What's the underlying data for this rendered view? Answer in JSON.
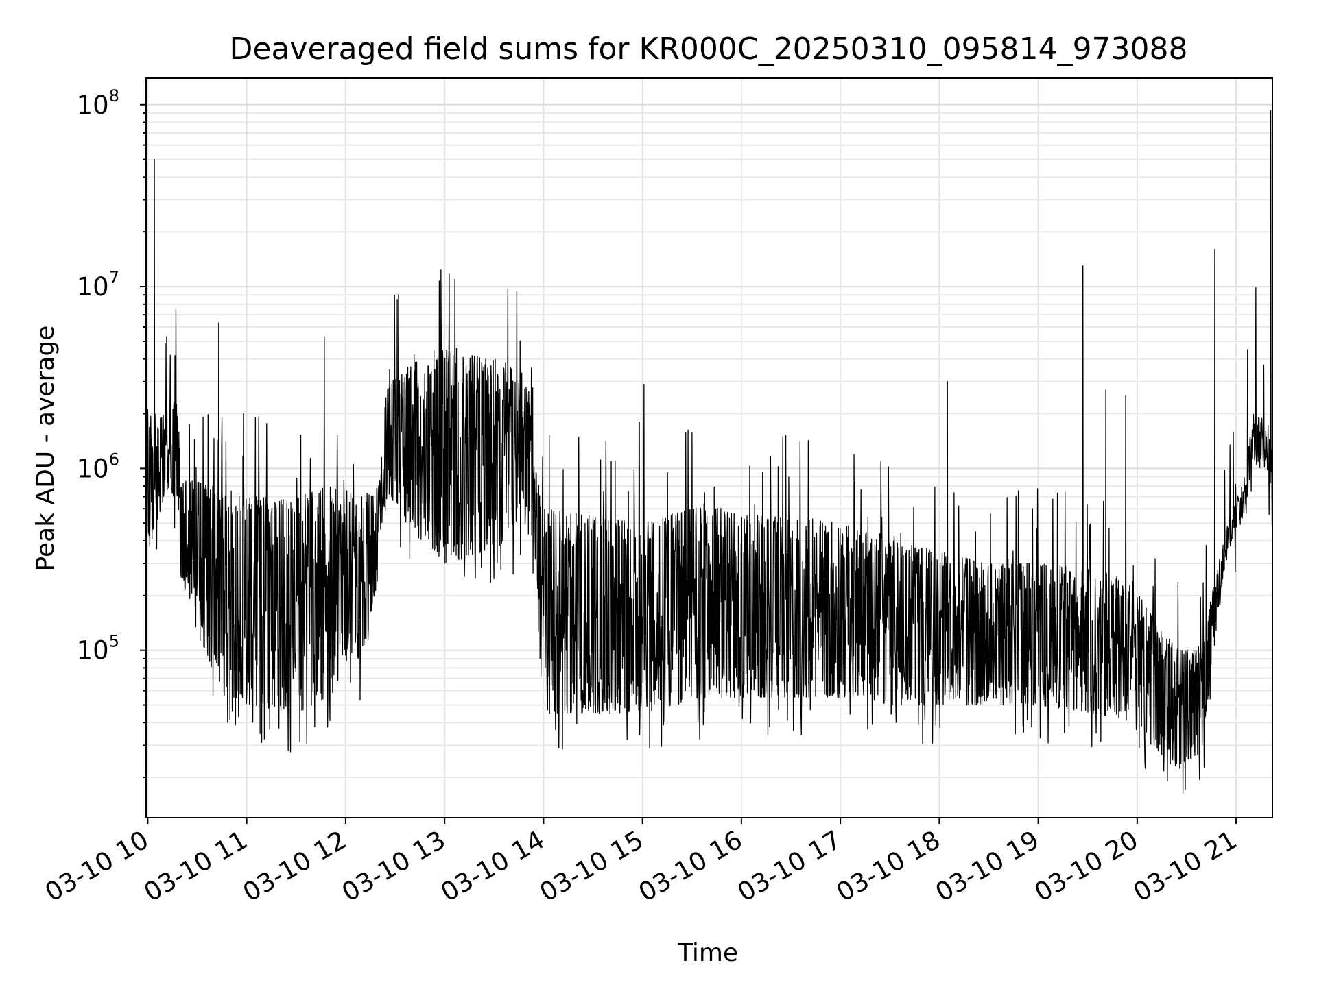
{
  "chart_data": {
    "type": "line",
    "title": "Deaveraged field sums for KR000C_20250310_095814_973088",
    "xlabel": "Time",
    "ylabel": "Peak ADU - average",
    "y_scale": "log",
    "ylim": [
      12000,
      140000000
    ],
    "xlim": [
      "2025-03-10 09:59",
      "2025-03-10 21:22"
    ],
    "grid": true,
    "line_color": "#000000",
    "x_ticks": [
      {
        "x": "2025-03-10 10:00",
        "label": "03-10 10"
      },
      {
        "x": "2025-03-10 11:00",
        "label": "03-10 11"
      },
      {
        "x": "2025-03-10 12:00",
        "label": "03-10 12"
      },
      {
        "x": "2025-03-10 13:00",
        "label": "03-10 13"
      },
      {
        "x": "2025-03-10 14:00",
        "label": "03-10 14"
      },
      {
        "x": "2025-03-10 15:00",
        "label": "03-10 15"
      },
      {
        "x": "2025-03-10 16:00",
        "label": "03-10 16"
      },
      {
        "x": "2025-03-10 17:00",
        "label": "03-10 17"
      },
      {
        "x": "2025-03-10 18:00",
        "label": "03-10 18"
      },
      {
        "x": "2025-03-10 19:00",
        "label": "03-10 19"
      },
      {
        "x": "2025-03-10 20:00",
        "label": "03-10 20"
      },
      {
        "x": "2025-03-10 21:00",
        "label": "03-10 21"
      }
    ],
    "y_ticks": [
      {
        "value": 100000,
        "base": "10",
        "exp": "5"
      },
      {
        "value": 1000000,
        "base": "10",
        "exp": "6"
      },
      {
        "value": 10000000,
        "base": "10",
        "exp": "7"
      },
      {
        "value": 100000000,
        "base": "10",
        "exp": "8"
      }
    ],
    "series": [
      {
        "envelope": [
          {
            "x": "2025-03-10 09:59",
            "low": 330000,
            "high": 1200000
          },
          {
            "x": "2025-03-10 10:02",
            "low": 380000,
            "high": 2000000
          },
          {
            "x": "2025-03-10 10:10",
            "low": 700000,
            "high": 2000000
          },
          {
            "x": "2025-03-10 10:18",
            "low": 700000,
            "high": 2500000
          },
          {
            "x": "2025-03-10 10:20",
            "low": 250000,
            "high": 900000
          },
          {
            "x": "2025-03-10 10:30",
            "low": 120000,
            "high": 850000
          },
          {
            "x": "2025-03-10 10:45",
            "low": 55000,
            "high": 800000
          },
          {
            "x": "2025-03-10 11:00",
            "low": 50000,
            "high": 700000
          },
          {
            "x": "2025-03-10 11:30",
            "low": 45000,
            "high": 700000
          },
          {
            "x": "2025-03-10 11:50",
            "low": 55000,
            "high": 800000
          },
          {
            "x": "2025-03-10 12:10",
            "low": 90000,
            "high": 700000
          },
          {
            "x": "2025-03-10 12:20",
            "low": 250000,
            "high": 800000
          },
          {
            "x": "2025-03-10 12:25",
            "low": 700000,
            "high": 3000000
          },
          {
            "x": "2025-03-10 12:45",
            "low": 400000,
            "high": 4000000
          },
          {
            "x": "2025-03-10 13:00",
            "low": 300000,
            "high": 4500000
          },
          {
            "x": "2025-03-10 13:30",
            "low": 350000,
            "high": 4000000
          },
          {
            "x": "2025-03-10 13:50",
            "low": 500000,
            "high": 3500000
          },
          {
            "x": "2025-03-10 13:55",
            "low": 200000,
            "high": 1000000
          },
          {
            "x": "2025-03-10 14:00",
            "low": 45000,
            "high": 600000
          },
          {
            "x": "2025-03-10 14:30",
            "low": 45000,
            "high": 550000
          },
          {
            "x": "2025-03-10 15:00",
            "low": 45000,
            "high": 500000
          },
          {
            "x": "2025-03-10 15:40",
            "low": 55000,
            "high": 650000
          },
          {
            "x": "2025-03-10 16:00",
            "low": 55000,
            "high": 550000
          },
          {
            "x": "2025-03-10 16:30",
            "low": 55000,
            "high": 550000
          },
          {
            "x": "2025-03-10 17:00",
            "low": 55000,
            "high": 500000
          },
          {
            "x": "2025-03-10 17:30",
            "low": 50000,
            "high": 400000
          },
          {
            "x": "2025-03-10 18:00",
            "low": 50000,
            "high": 350000
          },
          {
            "x": "2025-03-10 18:30",
            "low": 50000,
            "high": 300000
          },
          {
            "x": "2025-03-10 19:00",
            "low": 50000,
            "high": 300000
          },
          {
            "x": "2025-03-10 19:30",
            "low": 45000,
            "high": 280000
          },
          {
            "x": "2025-03-10 19:55",
            "low": 40000,
            "high": 250000
          },
          {
            "x": "2025-03-10 20:10",
            "low": 28000,
            "high": 150000
          },
          {
            "x": "2025-03-10 20:25",
            "low": 22000,
            "high": 100000
          },
          {
            "x": "2025-03-10 20:40",
            "low": 28000,
            "high": 110000
          },
          {
            "x": "2025-03-10 20:45",
            "low": 80000,
            "high": 200000
          },
          {
            "x": "2025-03-10 20:55",
            "low": 350000,
            "high": 500000
          },
          {
            "x": "2025-03-10 21:05",
            "low": 550000,
            "high": 900000
          },
          {
            "x": "2025-03-10 21:10",
            "low": 1100000,
            "high": 2000000
          },
          {
            "x": "2025-03-10 21:20",
            "low": 900000,
            "high": 1800000
          },
          {
            "x": "2025-03-10 21:22",
            "low": 450000,
            "high": 1200000
          }
        ],
        "spikes": [
          {
            "x": "2025-03-10 10:04",
            "y": 50000000
          },
          {
            "x": "2025-03-10 10:17",
            "y": 7500000
          },
          {
            "x": "2025-03-10 10:43",
            "y": 6300000
          },
          {
            "x": "2025-03-10 11:47",
            "y": 5300000
          },
          {
            "x": "2025-03-10 10:58",
            "y": 2000000
          },
          {
            "x": "2025-03-10 14:58",
            "y": 1800000
          },
          {
            "x": "2025-03-10 15:01",
            "y": 2900000
          },
          {
            "x": "2025-03-10 18:05",
            "y": 3000000
          },
          {
            "x": "2025-03-10 19:27",
            "y": 13000000
          },
          {
            "x": "2025-03-10 19:41",
            "y": 2700000
          },
          {
            "x": "2025-03-10 19:53",
            "y": 2500000
          },
          {
            "x": "2025-03-10 20:47",
            "y": 16000000
          },
          {
            "x": "2025-03-10 21:07",
            "y": 4500000
          },
          {
            "x": "2025-03-10 21:12",
            "y": 9900000
          },
          {
            "x": "2025-03-10 21:21",
            "y": 93000000
          }
        ]
      }
    ]
  }
}
